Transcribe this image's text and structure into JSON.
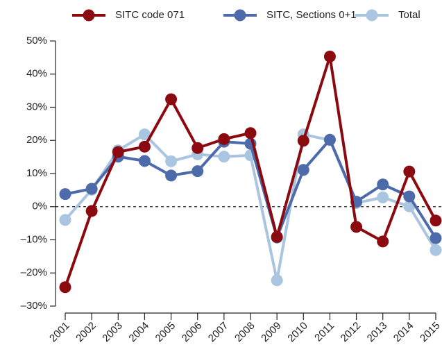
{
  "chart_data": {
    "type": "line",
    "categories": [
      "2001",
      "2002",
      "2003",
      "2004",
      "2005",
      "2006",
      "2007",
      "2008",
      "2009",
      "2010",
      "2011",
      "2012",
      "2013",
      "2014",
      "2015"
    ],
    "series": [
      {
        "name": "SITC code 071",
        "color": "#8b0a10",
        "values": [
          -24.3,
          -1.3,
          16.5,
          18.1,
          32.4,
          17.7,
          20.4,
          22.2,
          -9.1,
          19.9,
          45.3,
          -6.1,
          -10.5,
          10.6,
          -4.2
        ]
      },
      {
        "name": "SITC, Sections 0+1",
        "color": "#4d6aab",
        "values": [
          3.8,
          5.4,
          15.1,
          13.8,
          9.4,
          10.7,
          19.6,
          19.0,
          -9.3,
          11.1,
          20.2,
          1.5,
          6.7,
          3.1,
          -9.5
        ]
      },
      {
        "name": "Total",
        "color": "#a9c5df",
        "values": [
          -4.0,
          5.1,
          17.0,
          21.8,
          13.7,
          15.8,
          15.1,
          15.5,
          -22.2,
          21.8,
          20.1,
          1.1,
          2.8,
          0.1,
          -13.1
        ]
      }
    ],
    "ylim": [
      -30,
      50
    ],
    "yticks": [
      {
        "value": -30,
        "label": "–30%"
      },
      {
        "value": -20,
        "label": "–20%"
      },
      {
        "value": -10,
        "label": "–10%"
      },
      {
        "value": 0,
        "label": "0%"
      },
      {
        "value": 10,
        "label": "10%"
      },
      {
        "value": 20,
        "label": "20%"
      },
      {
        "value": 30,
        "label": "30%"
      },
      {
        "value": 40,
        "label": "40%"
      },
      {
        "value": 50,
        "label": "50%"
      }
    ],
    "legend": "top"
  }
}
